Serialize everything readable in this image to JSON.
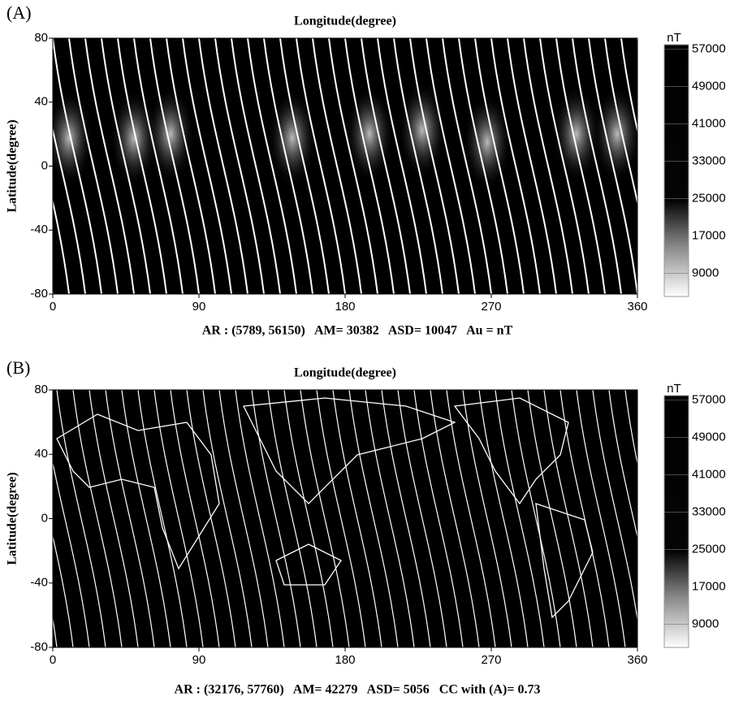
{
  "chart_data": [
    {
      "type": "heatmap",
      "panel_label": "(A)",
      "title": "Longitude(degree)",
      "y_label": "Latitude(degree)",
      "xlim": [
        0,
        360
      ],
      "xticks": [
        0,
        90,
        180,
        270,
        360
      ],
      "ylim": [
        -80,
        80
      ],
      "yticks": [
        -80,
        -40,
        0,
        40,
        80
      ],
      "colorbar_unit": "nT",
      "clim": [
        4000,
        58000
      ],
      "colorbar_ticks": [
        9000,
        17000,
        25000,
        33000,
        41000,
        49000,
        57000
      ],
      "caption": "AR : (5789, 56150)   AM= 30382   ASD= 10047   Au = nT"
    },
    {
      "type": "heatmap",
      "panel_label": "(B)",
      "title": "Longitude(degree)",
      "y_label": "Latitude(degree)",
      "xlim": [
        0,
        360
      ],
      "xticks": [
        0,
        90,
        180,
        270,
        360
      ],
      "ylim": [
        -80,
        80
      ],
      "yticks": [
        -80,
        -40,
        0,
        40,
        80
      ],
      "colorbar_unit": "nT",
      "clim": [
        4000,
        58000
      ],
      "colorbar_ticks": [
        9000,
        17000,
        25000,
        33000,
        41000,
        49000,
        57000
      ],
      "caption": "AR : (32176, 57760)   AM= 42279   ASD= 5056   CC with (A)= 0.73"
    }
  ]
}
